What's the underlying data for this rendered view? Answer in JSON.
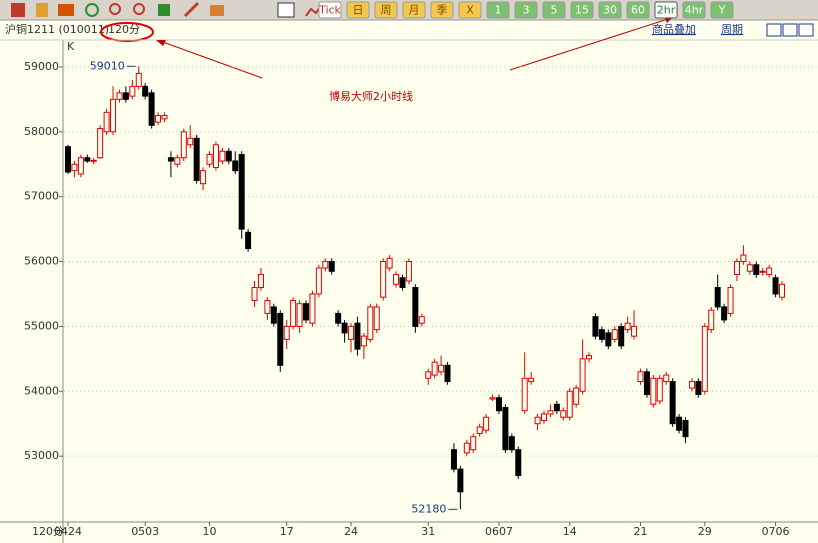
{
  "toolbar": {
    "buttons": [
      "Tick",
      "日",
      "周",
      "月",
      "季",
      "X",
      "1",
      "3",
      "5",
      "15",
      "30",
      "60",
      "2hr",
      "4hr",
      "Y"
    ]
  },
  "header": {
    "symbol": "沪铜1211 (010011)",
    "period": "120分",
    "links": [
      "商品叠加",
      "周期"
    ]
  },
  "chart_data": {
    "type": "candlestick",
    "title": "博易大师2小时线",
    "y_axis_label": "K",
    "x_axis_label": "120分",
    "up_color": "#e00000",
    "down_color": "#000000",
    "grid": true,
    "ylim": [
      51985,
      59415
    ],
    "yticks": [
      53000,
      54000,
      55000,
      56000,
      57000,
      58000,
      59000
    ],
    "categories": [
      "0424",
      null,
      null,
      null,
      null,
      null,
      null,
      null,
      null,
      null,
      null,
      null,
      "0503",
      null,
      null,
      null,
      null,
      null,
      null,
      null,
      null,
      null,
      "10",
      null,
      null,
      null,
      null,
      null,
      null,
      null,
      null,
      null,
      null,
      null,
      "17",
      null,
      null,
      null,
      null,
      null,
      null,
      null,
      null,
      null,
      "24",
      null,
      null,
      null,
      null,
      null,
      null,
      null,
      null,
      null,
      null,
      null,
      "31",
      null,
      null,
      null,
      null,
      null,
      null,
      null,
      null,
      null,
      null,
      "0607",
      null,
      null,
      null,
      null,
      null,
      null,
      null,
      null,
      null,
      null,
      "14",
      null,
      null,
      null,
      null,
      null,
      null,
      null,
      null,
      null,
      null,
      "21",
      null,
      null,
      null,
      null,
      null,
      null,
      null,
      null,
      null,
      "29",
      null,
      null,
      null,
      null,
      null,
      null,
      null,
      null,
      null,
      null,
      "0706",
      null
    ],
    "open": [
      57770,
      57400,
      57350,
      57600,
      57550,
      57600,
      58000,
      58000,
      58500,
      58600,
      58550,
      58700,
      58700,
      58600,
      58150,
      58200,
      57600,
      57500,
      57600,
      57800,
      57900,
      57200,
      57500,
      57450,
      57550,
      57700,
      57550,
      57650,
      56450,
      55400,
      55600,
      55200,
      55300,
      55200,
      54800,
      55000,
      55000,
      55350,
      55050,
      55500,
      55900,
      56000,
      55200,
      55050,
      54800,
      55050,
      54700,
      54800,
      54950,
      55450,
      55900,
      55650,
      55750,
      55700,
      55600,
      55050,
      54200,
      54250,
      54300,
      54400,
      53100,
      52800,
      53050,
      53100,
      53350,
      53400,
      53880,
      53900,
      53750,
      53300,
      53100,
      53700,
      54150,
      53500,
      53550,
      53650,
      53800,
      53600,
      53600,
      53800,
      54000,
      54500,
      55150,
      54950,
      54900,
      54800,
      55000,
      54950,
      54850,
      54150,
      54300,
      53800,
      53850,
      54150,
      54150,
      53600,
      53550,
      54050,
      54150,
      54000,
      54950,
      55600,
      55300,
      55200,
      55800,
      56000,
      55850,
      55950,
      55840,
      55800,
      55750,
      55450
    ],
    "high": [
      57800,
      57550,
      57650,
      57650,
      57600,
      58100,
      58350,
      58700,
      58650,
      58700,
      58800,
      59010,
      58750,
      58650,
      58300,
      58300,
      57700,
      57650,
      58050,
      58100,
      57950,
      57450,
      57700,
      57850,
      57750,
      57750,
      57700,
      57700,
      56500,
      55700,
      55900,
      55450,
      55350,
      55250,
      55100,
      55450,
      55400,
      55400,
      55550,
      55950,
      56050,
      56050,
      55250,
      55100,
      55050,
      55150,
      54900,
      55350,
      55350,
      56050,
      56100,
      55850,
      55800,
      56050,
      55650,
      55200,
      54350,
      54500,
      54550,
      54450,
      53200,
      52850,
      53250,
      53350,
      53500,
      53650,
      53950,
      53950,
      53800,
      53350,
      53150,
      54600,
      54300,
      53650,
      53700,
      53800,
      53850,
      53750,
      54050,
      54100,
      54800,
      54600,
      55200,
      55000,
      54950,
      55000,
      55050,
      55150,
      55250,
      54350,
      54350,
      54250,
      54250,
      54300,
      54200,
      53650,
      53600,
      54200,
      54200,
      55050,
      55300,
      55800,
      55350,
      55650,
      56050,
      56250,
      56000,
      56000,
      55900,
      55950,
      55800,
      55700
    ],
    "low": [
      57350,
      57300,
      57300,
      57520,
      57500,
      57580,
      57950,
      57950,
      58450,
      58450,
      58500,
      58650,
      58500,
      58050,
      58100,
      58150,
      57300,
      57450,
      57550,
      57750,
      57200,
      57100,
      57450,
      57400,
      57500,
      57500,
      57350,
      56350,
      56150,
      55300,
      55550,
      55100,
      55000,
      54300,
      54650,
      54950,
      54900,
      55050,
      55000,
      55450,
      55850,
      55800,
      55000,
      54750,
      54600,
      54550,
      54500,
      54750,
      54900,
      55400,
      55850,
      55600,
      55550,
      55650,
      54900,
      55000,
      54100,
      54200,
      54250,
      54100,
      52750,
      52180,
      53000,
      53050,
      53300,
      53350,
      53850,
      53650,
      53050,
      53050,
      52650,
      53650,
      54100,
      53400,
      53500,
      53600,
      53650,
      53550,
      53550,
      53750,
      53950,
      54450,
      54800,
      54750,
      54650,
      54750,
      54650,
      54900,
      54800,
      54100,
      53900,
      53750,
      53800,
      54100,
      53450,
      53350,
      53200,
      54000,
      53900,
      53950,
      54900,
      55250,
      55050,
      55150,
      55700,
      55950,
      55800,
      55750,
      55780,
      55750,
      55450,
      55400
    ],
    "close": [
      57380,
      57500,
      57600,
      57550,
      57560,
      58050,
      58300,
      58500,
      58600,
      58500,
      58700,
      58900,
      58550,
      58100,
      58250,
      58250,
      57550,
      57600,
      58000,
      57900,
      57250,
      57400,
      57650,
      57800,
      57700,
      57550,
      57400,
      56500,
      56200,
      55600,
      55800,
      55400,
      55050,
      54400,
      55000,
      55400,
      55350,
      55100,
      55500,
      55900,
      56000,
      55850,
      55050,
      54900,
      55000,
      54650,
      54850,
      55300,
      55300,
      56000,
      56050,
      55800,
      55600,
      56000,
      55000,
      55150,
      54300,
      54450,
      54400,
      54150,
      52800,
      52450,
      53200,
      53300,
      53450,
      53600,
      53900,
      53700,
      53100,
      53100,
      52700,
      54200,
      54200,
      53600,
      53650,
      53700,
      53700,
      53700,
      54000,
      54050,
      54500,
      54550,
      54850,
      54800,
      54700,
      54950,
      54700,
      55050,
      55000,
      54300,
      53950,
      54200,
      54200,
      54250,
      53500,
      53400,
      53300,
      54150,
      53950,
      55000,
      55250,
      55300,
      55100,
      55600,
      56000,
      56100,
      55950,
      55800,
      55850,
      55900,
      55500,
      55650
    ],
    "annotations": [
      {
        "value": 59010,
        "kind": "high"
      },
      {
        "value": 52180,
        "kind": "low"
      }
    ]
  }
}
